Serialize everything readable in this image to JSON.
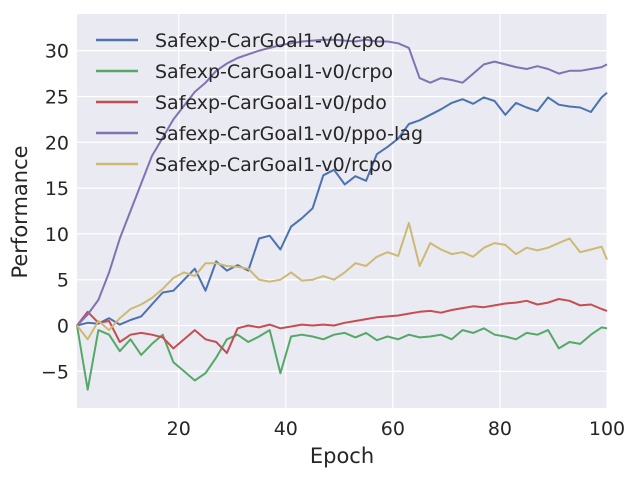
{
  "chart_data": {
    "type": "line",
    "xlabel": "Epoch",
    "ylabel": "Performance",
    "xlim": [
      1,
      100
    ],
    "ylim": [
      -9,
      34
    ],
    "xticks": [
      20,
      40,
      60,
      80,
      100
    ],
    "yticks": [
      -5,
      0,
      5,
      10,
      15,
      20,
      25,
      30
    ],
    "grid": true,
    "legend_position": "top-left",
    "series": [
      {
        "name": "Safexp-CarGoal1-v0/cpo",
        "color": "#4c72b0",
        "x": [
          1,
          3,
          5,
          7,
          9,
          11,
          13,
          15,
          17,
          19,
          21,
          23,
          25,
          27,
          29,
          31,
          33,
          35,
          37,
          39,
          41,
          43,
          45,
          47,
          49,
          51,
          53,
          55,
          57,
          59,
          61,
          63,
          65,
          67,
          69,
          71,
          73,
          75,
          77,
          79,
          81,
          83,
          85,
          87,
          89,
          91,
          93,
          95,
          97,
          99,
          100
        ],
        "values": [
          0,
          0.3,
          0.2,
          0.8,
          0.1,
          0.6,
          1.0,
          2.3,
          3.6,
          3.8,
          5.0,
          6.2,
          3.8,
          7.0,
          6.0,
          6.6,
          6.0,
          9.5,
          9.8,
          8.3,
          10.8,
          11.7,
          12.8,
          16.4,
          17.0,
          15.4,
          16.3,
          15.8,
          18.7,
          19.5,
          20.4,
          22.0,
          22.4,
          23.0,
          23.6,
          24.3,
          24.7,
          24.2,
          24.9,
          24.5,
          23.0,
          24.3,
          23.8,
          23.4,
          24.9,
          24.1,
          23.9,
          23.8,
          23.3,
          24.9,
          25.4
        ]
      },
      {
        "name": "Safexp-CarGoal1-v0/crpo",
        "color": "#55a868",
        "x": [
          1,
          3,
          5,
          7,
          9,
          11,
          13,
          15,
          17,
          19,
          21,
          23,
          25,
          27,
          29,
          31,
          33,
          35,
          37,
          39,
          41,
          43,
          45,
          47,
          49,
          51,
          53,
          55,
          57,
          59,
          61,
          63,
          65,
          67,
          69,
          71,
          73,
          75,
          77,
          79,
          81,
          83,
          85,
          87,
          89,
          91,
          93,
          95,
          97,
          99,
          100
        ],
        "values": [
          0,
          -7.0,
          -0.5,
          -1.0,
          -2.8,
          -1.5,
          -3.2,
          -2.0,
          -1.0,
          -4.0,
          -5.0,
          -6.0,
          -5.2,
          -3.5,
          -1.5,
          -1.0,
          -1.8,
          -1.2,
          -0.5,
          -5.2,
          -1.2,
          -1.0,
          -1.2,
          -1.5,
          -1.0,
          -0.8,
          -1.3,
          -0.8,
          -1.6,
          -1.2,
          -1.5,
          -1.0,
          -1.3,
          -1.2,
          -1.0,
          -1.5,
          -0.5,
          -0.8,
          -0.3,
          -1.0,
          -1.2,
          -1.5,
          -0.8,
          -1.0,
          -0.5,
          -2.5,
          -1.8,
          -2.0,
          -1.0,
          -0.2,
          -0.3
        ]
      },
      {
        "name": "Safexp-CarGoal1-v0/pdo",
        "color": "#c44e52",
        "x": [
          1,
          3,
          5,
          7,
          9,
          11,
          13,
          15,
          17,
          19,
          21,
          23,
          25,
          27,
          29,
          31,
          33,
          35,
          37,
          39,
          41,
          43,
          45,
          47,
          49,
          51,
          53,
          55,
          57,
          59,
          61,
          63,
          65,
          67,
          69,
          71,
          73,
          75,
          77,
          79,
          81,
          83,
          85,
          87,
          89,
          91,
          93,
          95,
          97,
          99,
          100
        ],
        "values": [
          0,
          1.5,
          0.3,
          0.5,
          -1.8,
          -1.0,
          -0.8,
          -1.0,
          -1.3,
          -2.5,
          -1.5,
          -0.5,
          -1.5,
          -1.8,
          -3.0,
          -0.3,
          0.0,
          -0.2,
          0.1,
          -0.3,
          -0.1,
          0.1,
          0.0,
          0.1,
          0.0,
          0.3,
          0.5,
          0.7,
          0.9,
          1.0,
          1.1,
          1.3,
          1.5,
          1.6,
          1.4,
          1.7,
          1.9,
          2.1,
          2.0,
          2.2,
          2.4,
          2.5,
          2.7,
          2.3,
          2.5,
          2.9,
          2.7,
          2.2,
          2.3,
          1.8,
          1.6
        ]
      },
      {
        "name": "Safexp-CarGoal1-v0/ppo-lag",
        "color": "#8172b2",
        "x": [
          1,
          3,
          5,
          7,
          9,
          11,
          13,
          15,
          17,
          19,
          21,
          23,
          25,
          27,
          29,
          31,
          33,
          35,
          37,
          39,
          41,
          43,
          45,
          47,
          49,
          51,
          53,
          55,
          57,
          59,
          61,
          63,
          65,
          67,
          69,
          71,
          73,
          75,
          77,
          79,
          81,
          83,
          85,
          87,
          89,
          91,
          93,
          95,
          97,
          99,
          100
        ],
        "values": [
          0,
          1.2,
          2.8,
          5.8,
          9.5,
          12.5,
          15.5,
          18.5,
          20.5,
          22.5,
          24.0,
          25.5,
          26.5,
          27.8,
          28.6,
          29.2,
          29.6,
          30.0,
          30.3,
          30.6,
          30.8,
          31.0,
          31.1,
          31.2,
          31.2,
          31.1,
          31.0,
          31.2,
          31.0,
          31.0,
          30.8,
          30.3,
          27.0,
          26.5,
          27.0,
          26.8,
          26.5,
          27.5,
          28.5,
          28.8,
          28.5,
          28.2,
          28.0,
          28.3,
          28.0,
          27.5,
          27.8,
          27.8,
          28.0,
          28.2,
          28.5
        ]
      },
      {
        "name": "Safexp-CarGoal1-v0/rcpo",
        "color": "#ccb974",
        "x": [
          1,
          3,
          5,
          7,
          9,
          11,
          13,
          15,
          17,
          19,
          21,
          23,
          25,
          27,
          29,
          31,
          33,
          35,
          37,
          39,
          41,
          43,
          45,
          47,
          49,
          51,
          53,
          55,
          57,
          59,
          61,
          63,
          65,
          67,
          69,
          71,
          73,
          75,
          77,
          79,
          81,
          83,
          85,
          87,
          89,
          91,
          93,
          95,
          97,
          99,
          100
        ],
        "values": [
          0,
          -1.5,
          0.5,
          -0.5,
          0.8,
          1.8,
          2.3,
          3.0,
          4.0,
          5.2,
          5.8,
          5.4,
          6.8,
          6.8,
          6.5,
          6.4,
          6.2,
          5.0,
          4.8,
          5.0,
          5.8,
          4.9,
          5.0,
          5.4,
          5.0,
          5.8,
          6.8,
          6.5,
          7.5,
          8.0,
          7.6,
          11.2,
          6.5,
          9.0,
          8.3,
          7.8,
          8.0,
          7.5,
          8.5,
          9.0,
          8.8,
          7.8,
          8.5,
          8.2,
          8.5,
          9.0,
          9.5,
          8.0,
          8.3,
          8.6,
          7.2
        ]
      }
    ]
  }
}
